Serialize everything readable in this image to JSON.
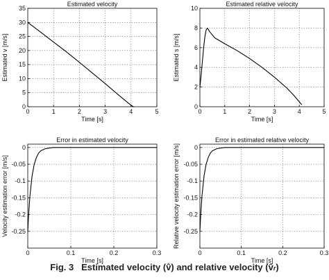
{
  "caption": {
    "label": "Fig. 3",
    "text_main": "Estimated velocity (v̂) and relative velocity (v̂",
    "text_sub": "r",
    "text_end": ")"
  },
  "colors": {
    "axis": "#000000",
    "grid": "#555555",
    "line": "#000000"
  },
  "chart_data": [
    {
      "type": "line",
      "title": "Estimated velocity",
      "xlabel": "Time [s]",
      "ylabel": "Estimated v [m/s]",
      "xlim": [
        0,
        5
      ],
      "ylim": [
        0,
        35
      ],
      "xticks": [
        "0",
        "1",
        "2",
        "3",
        "4",
        "5"
      ],
      "yticks": [
        "0",
        "5",
        "10",
        "15",
        "20",
        "25",
        "30",
        "35"
      ],
      "grid": true,
      "series": [
        {
          "x": [
            0,
            0.5,
            1,
            1.5,
            2,
            2.5,
            3,
            3.5,
            4.0,
            4.1
          ],
          "y": [
            30,
            26.5,
            23,
            19.5,
            15.8,
            12.0,
            8.2,
            4.3,
            0.5,
            0
          ]
        }
      ]
    },
    {
      "type": "line",
      "title": "Estimated relative velocity",
      "xlabel": "Time [s]",
      "ylabel": "Estimated s [m/s]",
      "xlim": [
        0,
        5
      ],
      "ylim": [
        0,
        10
      ],
      "xticks": [
        "0",
        "1",
        "2",
        "3",
        "4",
        "5"
      ],
      "yticks": [
        "0",
        "2",
        "4",
        "6",
        "8",
        "10"
      ],
      "grid": true,
      "series": [
        {
          "x": [
            0,
            0.05,
            0.1,
            0.15,
            0.2,
            0.25,
            0.3,
            0.4,
            0.6,
            1.0,
            1.5,
            2.0,
            2.5,
            3.0,
            3.5,
            3.8,
            4.0,
            4.1
          ],
          "y": [
            2.0,
            3.2,
            4.6,
            6.0,
            7.1,
            7.8,
            8.0,
            7.6,
            7.0,
            6.4,
            5.7,
            4.9,
            4.0,
            3.0,
            1.9,
            1.1,
            0.5,
            0.2
          ]
        }
      ]
    },
    {
      "type": "line",
      "title": "Error in estimated velocity",
      "xlabel": "Time [s]",
      "ylabel": "Velocity estimation error [m/s]",
      "xlim": [
        0,
        0.3
      ],
      "ylim": [
        -0.3,
        0.01
      ],
      "xticks": [
        "0",
        "0.1",
        "0.2",
        "0.3"
      ],
      "yticks": [
        "0",
        "-0.05",
        "-0.1",
        "-0.15",
        "-0.2",
        "-0.25"
      ],
      "grid": true,
      "series": [
        {
          "x": [
            0,
            0.002,
            0.005,
            0.01,
            0.015,
            0.02,
            0.025,
            0.03,
            0.04,
            0.05,
            0.06,
            0.1,
            0.2,
            0.3
          ],
          "y": [
            -0.25,
            -0.2,
            -0.145,
            -0.085,
            -0.05,
            -0.03,
            -0.017,
            -0.01,
            -0.004,
            -0.0015,
            0,
            0,
            0,
            0
          ]
        }
      ]
    },
    {
      "type": "line",
      "title": "Error in estimated relative velocity",
      "xlabel": "Time [s]",
      "ylabel": "Relative velocity estimation error [m/s]",
      "xlim": [
        0,
        0.3
      ],
      "ylim": [
        -0.3,
        0.01
      ],
      "xticks": [
        "0",
        "0.1",
        "0.2",
        "0.3"
      ],
      "yticks": [
        "0",
        "-0.05",
        "-0.1",
        "-0.15",
        "-0.2",
        "-0.25"
      ],
      "grid": true,
      "series": [
        {
          "x": [
            0,
            0.002,
            0.005,
            0.01,
            0.015,
            0.02,
            0.025,
            0.03,
            0.04,
            0.05,
            0.06,
            0.1,
            0.2,
            0.3
          ],
          "y": [
            -0.25,
            -0.2,
            -0.145,
            -0.085,
            -0.05,
            -0.03,
            -0.017,
            -0.01,
            -0.004,
            -0.0015,
            0,
            0,
            0,
            0
          ]
        }
      ]
    }
  ]
}
